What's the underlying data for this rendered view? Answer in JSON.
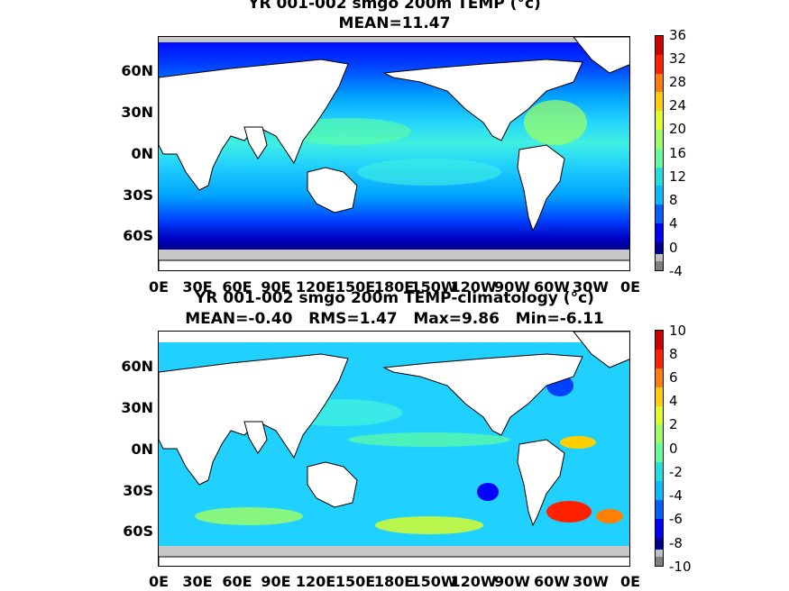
{
  "panels": [
    {
      "title_line1": "YR 001-002 smgo 200m TEMP (°c)",
      "title_line2": "MEAN=11.47",
      "colorbar_labels": [
        "36",
        "32",
        "28",
        "24",
        "20",
        "16",
        "12",
        "8",
        "4",
        "0",
        "-4"
      ]
    },
    {
      "title_line1": "YR 001-002 smgo 200m TEMP-climatology (°c)",
      "title_line2": "MEAN=-0.40   RMS=1.47   Max=9.86   Min=-6.11",
      "colorbar_labels": [
        "10",
        "8",
        "6",
        "4",
        "2",
        "0",
        "-2",
        "-4",
        "-6",
        "-8",
        "-10"
      ]
    }
  ],
  "lat_labels": [
    "60N",
    "30N",
    "0N",
    "30S",
    "60S"
  ],
  "lon_labels": [
    "0E",
    "30E",
    "60E",
    "90E",
    "120E",
    "150E",
    "180E",
    "150W",
    "120W",
    "90W",
    "60W",
    "30W",
    "0E"
  ],
  "colors": {
    "land": "#ffffff",
    "ice_mask": "#c8c8c8",
    "colormap": [
      "#7f7f7f",
      "#bfbfbf",
      "#00008f",
      "#0000ff",
      "#0060ff",
      "#00bfff",
      "#20e0e0",
      "#60ffa0",
      "#a0ff60",
      "#e0ff20",
      "#ffd000",
      "#ff8000",
      "#ff2000",
      "#d00000"
    ]
  }
}
